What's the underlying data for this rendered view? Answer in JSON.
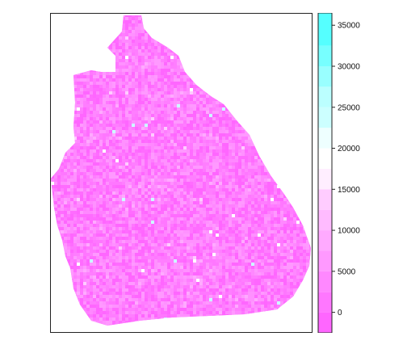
{
  "map": {
    "colors": {
      "low": "#ff66ff",
      "mid": "#ffffff",
      "high": "#55ffff",
      "frame": "#222222"
    }
  },
  "legend": {
    "ticks": [
      {
        "value": 0,
        "label": "0"
      },
      {
        "value": 5000,
        "label": "5000"
      },
      {
        "value": 10000,
        "label": "10000"
      },
      {
        "value": 15000,
        "label": "15000"
      },
      {
        "value": 20000,
        "label": "20000"
      },
      {
        "value": 25000,
        "label": "25000"
      },
      {
        "value": 30000,
        "label": "30000"
      },
      {
        "value": 35000,
        "label": "35000"
      }
    ],
    "range": [
      -2500,
      36500
    ],
    "bands": [
      -2500,
      0,
      2500,
      5000,
      7500,
      10000,
      12500,
      15000,
      17500,
      20000,
      22500,
      25000,
      27500,
      30000,
      32500,
      36500
    ],
    "band_colors": [
      "#ff66ff",
      "#ff77ff",
      "#ff88ff",
      "#ff99ff",
      "#ffaaff",
      "#ffbbff",
      "#ffccff",
      "#ffeeff",
      "#ffffff",
      "#eeffff",
      "#ccffff",
      "#bbffff",
      "#99ffff",
      "#77ffff",
      "#55ffff"
    ]
  }
}
